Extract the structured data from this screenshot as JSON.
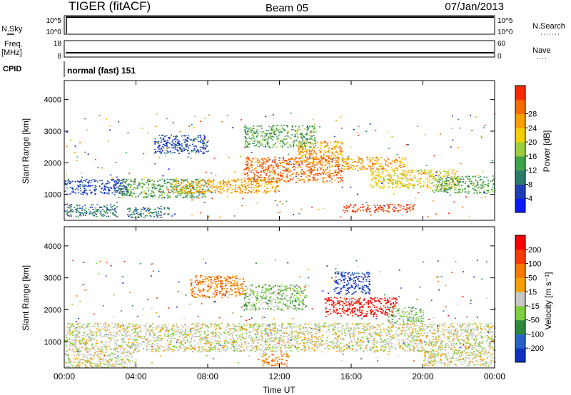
{
  "header": {
    "radar": "TIGER (fitACF)",
    "beam": "Beam 05",
    "date": "07/Jan/2013"
  },
  "strips": {
    "nsky_label": "N.Sky",
    "nsky_ticks": [
      "10^5",
      "10^0"
    ],
    "nsearch_label": "N.Search",
    "nsearch_ticks": [
      "10^5",
      "10^0"
    ],
    "freq_label": "Freq.",
    "freq_unit": "[MHz]",
    "freq_ticks": [
      "18",
      "8"
    ],
    "nave_label": "Nave",
    "nave_ticks": [
      "60",
      "0"
    ],
    "cpid_label": "CPID",
    "cpid_value": "normal (fast) 151"
  },
  "chart_data": [
    {
      "type": "heatmap",
      "xlabel": "",
      "ylabel": "Slant Range [km]",
      "xlim": [
        0,
        24
      ],
      "ylim": [
        180,
        4600
      ],
      "yticks": [
        1000,
        2000,
        3000,
        4000
      ],
      "colorbar": {
        "label": "Power [dB]",
        "ticks": [
          "4",
          "8",
          "12",
          "16",
          "20",
          "24",
          "28"
        ],
        "colors": [
          "#0a1aff",
          "#1f3fb5",
          "#2e7a6a",
          "#3fa34a",
          "#9ccf3e",
          "#f4d000",
          "#f7a000",
          "#f76a00",
          "#f72a00"
        ]
      },
      "bands": [
        {
          "x": [
            0,
            3.5
          ],
          "range": [
            1000,
            1500
          ],
          "level": 1
        },
        {
          "x": [
            0,
            3
          ],
          "range": [
            300,
            700
          ],
          "level": 2
        },
        {
          "x": [
            3,
            8
          ],
          "range": [
            900,
            1500
          ],
          "level": 3
        },
        {
          "x": [
            6,
            12
          ],
          "range": [
            1050,
            1500
          ],
          "level": 6
        },
        {
          "x": [
            10,
            15.5
          ],
          "range": [
            1400,
            2200
          ],
          "level": 7
        },
        {
          "x": [
            13,
            15.5
          ],
          "range": [
            2000,
            2700
          ],
          "level": 6
        },
        {
          "x": [
            15.5,
            19
          ],
          "range": [
            1800,
            2200
          ],
          "level": 6
        },
        {
          "x": [
            17,
            22
          ],
          "range": [
            1200,
            1800
          ],
          "level": 5
        },
        {
          "x": [
            20.5,
            24
          ],
          "range": [
            1050,
            1600
          ],
          "level": 3
        },
        {
          "x": [
            15.5,
            19.5
          ],
          "range": [
            450,
            700
          ],
          "level": 8
        },
        {
          "x": [
            10,
            14
          ],
          "range": [
            2500,
            3200
          ],
          "level": 3
        },
        {
          "x": [
            5,
            8
          ],
          "range": [
            2300,
            2900
          ],
          "level": 1
        },
        {
          "x": [
            3.5,
            6
          ],
          "range": [
            280,
            600
          ],
          "level": 2
        }
      ]
    },
    {
      "type": "heatmap",
      "xlabel": "Time UT",
      "ylabel": "Slant Range [km]",
      "xlim": [
        0,
        24
      ],
      "ylim": [
        180,
        4600
      ],
      "yticks": [
        1000,
        2000,
        3000,
        4000
      ],
      "xticks": [
        "00:00",
        "04:00",
        "08:00",
        "12:00",
        "16:00",
        "20:00",
        "00:00"
      ],
      "colorbar": {
        "label": "Velocity [m s⁻¹]",
        "ticks": [
          "200",
          "100",
          "50",
          "15",
          "-15",
          "-50",
          "-100",
          "-200"
        ],
        "colors": [
          "#1030c0",
          "#2a60c8",
          "#2e8a3a",
          "#7ccf3e",
          "#c8c8c8",
          "#f7a000",
          "#f77a00",
          "#f73a00",
          "#f70000"
        ]
      },
      "bands": [
        {
          "x": [
            0,
            24
          ],
          "range": [
            700,
            1600
          ],
          "level": 4
        },
        {
          "x": [
            0,
            4
          ],
          "range": [
            200,
            700
          ],
          "level": 4
        },
        {
          "x": [
            7,
            10
          ],
          "range": [
            2400,
            3100
          ],
          "level": 6
        },
        {
          "x": [
            10,
            13.5
          ],
          "range": [
            2000,
            2800
          ],
          "level": 3
        },
        {
          "x": [
            14.5,
            18.5
          ],
          "range": [
            1800,
            2400
          ],
          "level": 8
        },
        {
          "x": [
            15,
            17
          ],
          "range": [
            2500,
            3200
          ],
          "level": 0
        },
        {
          "x": [
            18,
            20
          ],
          "range": [
            1600,
            2100
          ],
          "level": 3
        },
        {
          "x": [
            11,
            12.5
          ],
          "range": [
            250,
            650
          ],
          "level": 6
        },
        {
          "x": [
            20,
            24
          ],
          "range": [
            250,
            700
          ],
          "level": 4
        }
      ]
    }
  ]
}
